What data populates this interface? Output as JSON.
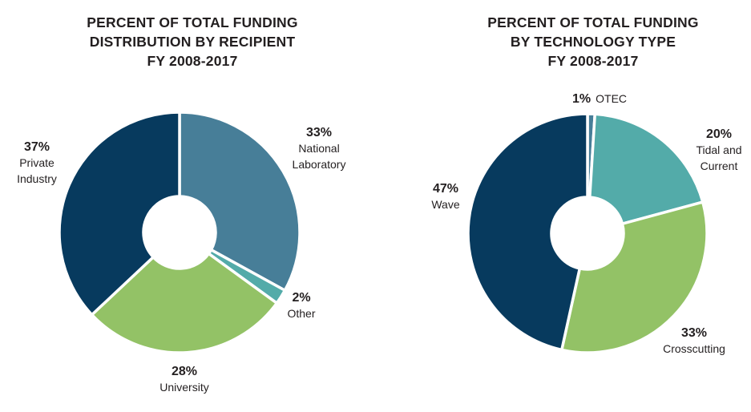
{
  "colors": {
    "navy": "#073a5e",
    "steel_blue": "#477e98",
    "teal": "#53aba9",
    "green": "#93c266",
    "separator": "#ffffff"
  },
  "chart_data": [
    {
      "type": "pie",
      "style": "donut",
      "title_lines": [
        "PERCENT OF TOTAL FUNDING",
        "DISTRIBUTION BY RECIPIENT",
        "FY 2008-2017"
      ],
      "slices": [
        {
          "pct_label": "33%",
          "name_lines": [
            "National",
            "Laboratory"
          ],
          "value": 33,
          "color": "#477e98"
        },
        {
          "pct_label": "2%",
          "name_lines": [
            "Other"
          ],
          "value": 2,
          "color": "#53aba9"
        },
        {
          "pct_label": "28%",
          "name_lines": [
            "University"
          ],
          "value": 28,
          "color": "#93c266"
        },
        {
          "pct_label": "37%",
          "name_lines": [
            "Private",
            "Industry"
          ],
          "value": 37,
          "color": "#073a5e"
        }
      ]
    },
    {
      "type": "pie",
      "style": "donut",
      "title_lines": [
        "PERCENT OF TOTAL FUNDING",
        "BY TECHNOLOGY TYPE",
        "FY 2008-2017"
      ],
      "slices": [
        {
          "pct_label": "1%",
          "name_lines": [
            "OTEC"
          ],
          "value": 1,
          "color": "#477e98"
        },
        {
          "pct_label": "20%",
          "name_lines": [
            "Tidal and",
            "Current"
          ],
          "value": 20,
          "color": "#53aba9"
        },
        {
          "pct_label": "33%",
          "name_lines": [
            "Crosscutting"
          ],
          "value": 33,
          "color": "#93c266"
        },
        {
          "pct_label": "47%",
          "name_lines": [
            "Wave"
          ],
          "value": 47,
          "color": "#073a5e"
        }
      ]
    }
  ]
}
